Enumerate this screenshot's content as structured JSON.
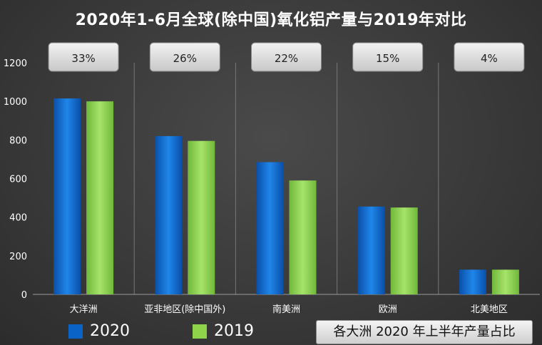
{
  "title": "2020年1-6月全球(除中国)氧化铝产量与2019年对比",
  "note": "各大洲 2020 年上半年产量占比",
  "colors": {
    "s2020": "#0a64c8",
    "s2019": "#8ed34a",
    "grid": "#777777"
  },
  "chart_data": {
    "type": "bar",
    "title": "2020年1-6月全球(除中国)氧化铝产量与2019年对比",
    "categories": [
      "大洋洲",
      "亚非地区(除中国外)",
      "南美洲",
      "欧洲",
      "北美地区"
    ],
    "series": [
      {
        "name": "2020",
        "values": [
          1015,
          820,
          685,
          455,
          128
        ]
      },
      {
        "name": "2019",
        "values": [
          1000,
          795,
          590,
          450,
          128
        ]
      }
    ],
    "shares": [
      "33%",
      "26%",
      "22%",
      "15%",
      "4%"
    ],
    "ylim": [
      0,
      1200
    ],
    "yticks": [
      0,
      200,
      400,
      600,
      800,
      1000,
      1200
    ],
    "grid": true,
    "legend": "bottom-left"
  }
}
